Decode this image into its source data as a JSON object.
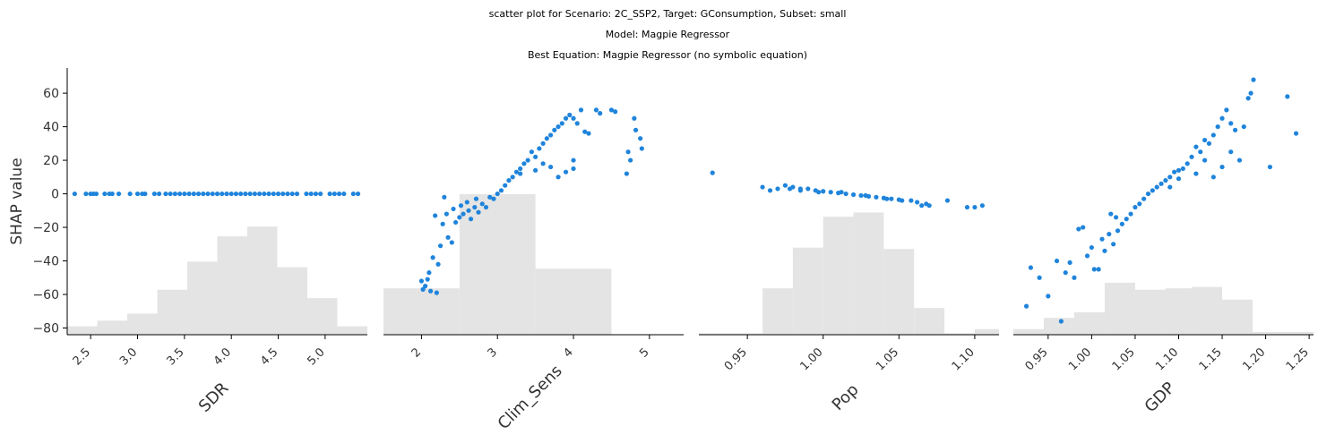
{
  "titles": [
    "scatter plot for Scenario: 2C_SSP2, Target: GConsumption, Subset: small",
    "Model: Magpie Regressor",
    "Best Equation: Magpie Regressor (no symbolic equation)"
  ],
  "colors": {
    "points": "#1f84db",
    "histogram": "#e4e4e4",
    "axis": "#000000"
  },
  "chart_data": [
    {
      "type": "scatter",
      "xlabel": "SDR",
      "ylabel": "SHAP value",
      "xlim": [
        2.25,
        5.45
      ],
      "ylim": [
        -84,
        75
      ],
      "x_ticks": [
        2.5,
        3.0,
        3.5,
        4.0,
        4.5,
        5.0
      ],
      "x_tick_labels": [
        "2.5",
        "3.0",
        "3.5",
        "4.0",
        "4.5",
        "5.0"
      ],
      "y_ticks": [
        -80,
        -60,
        -40,
        -20,
        0,
        20,
        40,
        60
      ],
      "y_tick_labels": [
        "−80",
        "−60",
        "−40",
        "−20",
        "0",
        "20",
        "40",
        "60"
      ],
      "tick_rotation": -45,
      "histogram": [
        {
          "x0": 2.25,
          "x1": 2.57,
          "h": 0.06
        },
        {
          "x0": 2.57,
          "x1": 2.89,
          "h": 0.1
        },
        {
          "x0": 2.89,
          "x1": 3.21,
          "h": 0.15
        },
        {
          "x0": 3.21,
          "x1": 3.53,
          "h": 0.32
        },
        {
          "x0": 3.53,
          "x1": 3.85,
          "h": 0.52
        },
        {
          "x0": 3.85,
          "x1": 4.17,
          "h": 0.7
        },
        {
          "x0": 4.17,
          "x1": 4.49,
          "h": 0.77
        },
        {
          "x0": 4.49,
          "x1": 4.81,
          "h": 0.48
        },
        {
          "x0": 4.81,
          "x1": 5.13,
          "h": 0.26
        },
        {
          "x0": 5.13,
          "x1": 5.45,
          "h": 0.06
        }
      ],
      "points": [
        [
          2.33,
          0
        ],
        [
          2.45,
          0
        ],
        [
          2.5,
          0
        ],
        [
          2.53,
          0
        ],
        [
          2.56,
          0
        ],
        [
          2.65,
          0
        ],
        [
          2.7,
          0
        ],
        [
          2.73,
          0
        ],
        [
          2.8,
          0
        ],
        [
          2.92,
          0
        ],
        [
          3.0,
          0
        ],
        [
          3.05,
          0
        ],
        [
          3.08,
          0
        ],
        [
          3.18,
          0
        ],
        [
          3.23,
          0
        ],
        [
          3.3,
          0
        ],
        [
          3.35,
          0
        ],
        [
          3.4,
          0
        ],
        [
          3.45,
          0
        ],
        [
          3.5,
          0
        ],
        [
          3.55,
          0
        ],
        [
          3.6,
          0
        ],
        [
          3.65,
          0
        ],
        [
          3.7,
          0
        ],
        [
          3.75,
          0
        ],
        [
          3.8,
          0
        ],
        [
          3.85,
          0
        ],
        [
          3.9,
          0
        ],
        [
          3.95,
          0
        ],
        [
          4.0,
          0
        ],
        [
          4.05,
          0
        ],
        [
          4.1,
          0
        ],
        [
          4.15,
          0
        ],
        [
          4.2,
          0
        ],
        [
          4.25,
          0
        ],
        [
          4.3,
          0
        ],
        [
          4.35,
          0
        ],
        [
          4.4,
          0
        ],
        [
          4.45,
          0
        ],
        [
          4.5,
          0
        ],
        [
          4.55,
          0
        ],
        [
          4.6,
          0
        ],
        [
          4.65,
          0
        ],
        [
          4.7,
          0
        ],
        [
          4.8,
          0
        ],
        [
          4.85,
          0
        ],
        [
          4.9,
          0
        ],
        [
          4.95,
          0
        ],
        [
          5.05,
          0
        ],
        [
          5.1,
          0
        ],
        [
          5.15,
          0
        ],
        [
          5.2,
          0
        ],
        [
          5.3,
          0
        ],
        [
          5.35,
          0
        ]
      ]
    },
    {
      "type": "scatter",
      "xlabel": "Clim_Sens",
      "ylabel": "",
      "xlim": [
        1.5,
        5.45
      ],
      "ylim": [
        -84,
        75
      ],
      "x_ticks": [
        2,
        3,
        4,
        5
      ],
      "x_tick_labels": [
        "2",
        "3",
        "4",
        "5"
      ],
      "y_ticks": [],
      "y_tick_labels": [],
      "tick_rotation": -45,
      "histogram": [
        {
          "x0": 1.5,
          "x1": 2.5,
          "h": 0.33
        },
        {
          "x0": 2.5,
          "x1": 3.5,
          "h": 1.0
        },
        {
          "x0": 3.5,
          "x1": 4.5,
          "h": 0.47
        }
      ],
      "points": [
        [
          2.0,
          -52
        ],
        [
          2.02,
          -57
        ],
        [
          2.05,
          -55
        ],
        [
          2.08,
          -51
        ],
        [
          2.1,
          -47
        ],
        [
          2.12,
          -58
        ],
        [
          2.15,
          -38
        ],
        [
          2.18,
          -13
        ],
        [
          2.2,
          -59
        ],
        [
          2.22,
          -42
        ],
        [
          2.25,
          -31
        ],
        [
          2.28,
          -18
        ],
        [
          2.3,
          -2
        ],
        [
          2.33,
          -12
        ],
        [
          2.35,
          -26
        ],
        [
          2.4,
          -29
        ],
        [
          2.42,
          -9
        ],
        [
          2.45,
          -17
        ],
        [
          2.5,
          -14
        ],
        [
          2.52,
          -7
        ],
        [
          2.55,
          -12
        ],
        [
          2.6,
          -5
        ],
        [
          2.62,
          -10
        ],
        [
          2.65,
          -15
        ],
        [
          2.7,
          -8
        ],
        [
          2.72,
          -3
        ],
        [
          2.75,
          -11
        ],
        [
          2.8,
          -6
        ],
        [
          2.85,
          -8
        ],
        [
          2.9,
          -2
        ],
        [
          2.95,
          -3
        ],
        [
          3.0,
          0
        ],
        [
          3.05,
          2
        ],
        [
          3.1,
          5
        ],
        [
          3.15,
          8
        ],
        [
          3.2,
          10
        ],
        [
          3.25,
          13
        ],
        [
          3.3,
          15
        ],
        [
          3.35,
          18
        ],
        [
          3.4,
          20
        ],
        [
          3.45,
          25
        ],
        [
          3.5,
          22
        ],
        [
          3.55,
          27
        ],
        [
          3.6,
          30
        ],
        [
          3.65,
          33
        ],
        [
          3.7,
          35
        ],
        [
          3.75,
          38
        ],
        [
          3.8,
          40
        ],
        [
          3.85,
          42
        ],
        [
          3.9,
          45
        ],
        [
          3.95,
          47
        ],
        [
          4.0,
          45
        ],
        [
          4.05,
          42
        ],
        [
          4.1,
          50
        ],
        [
          4.15,
          37
        ],
        [
          4.2,
          36
        ],
        [
          4.3,
          50
        ],
        [
          4.35,
          48
        ],
        [
          4.5,
          50
        ],
        [
          4.55,
          49
        ],
        [
          4.7,
          12
        ],
        [
          4.72,
          25
        ],
        [
          4.75,
          20
        ],
        [
          4.8,
          45
        ],
        [
          4.82,
          38
        ],
        [
          4.88,
          33
        ],
        [
          4.9,
          27
        ],
        [
          3.3,
          12
        ],
        [
          3.5,
          14
        ],
        [
          3.7,
          16
        ],
        [
          3.9,
          13
        ],
        [
          4.0,
          15
        ],
        [
          4.0,
          20
        ],
        [
          3.8,
          10
        ],
        [
          3.6,
          18
        ]
      ]
    },
    {
      "type": "scatter",
      "xlabel": "Pop",
      "ylabel": "",
      "xlim": [
        0.918,
        1.116
      ],
      "ylim": [
        -84,
        75
      ],
      "x_ticks": [
        0.95,
        1.0,
        1.05,
        1.1
      ],
      "x_tick_labels": [
        "0.95",
        "1.00",
        "1.05",
        "1.10"
      ],
      "y_ticks": [],
      "y_tick_labels": [],
      "tick_rotation": -45,
      "histogram": [
        {
          "x0": 0.918,
          "x1": 0.94,
          "h": 0.01
        },
        {
          "x0": 0.94,
          "x1": 0.96,
          "h": 0.01
        },
        {
          "x0": 0.96,
          "x1": 0.98,
          "h": 0.33
        },
        {
          "x0": 0.98,
          "x1": 1.0,
          "h": 0.62
        },
        {
          "x0": 1.0,
          "x1": 1.02,
          "h": 0.84
        },
        {
          "x0": 1.02,
          "x1": 1.04,
          "h": 0.87
        },
        {
          "x0": 1.04,
          "x1": 1.06,
          "h": 0.61
        },
        {
          "x0": 1.06,
          "x1": 1.08,
          "h": 0.19
        },
        {
          "x0": 1.08,
          "x1": 1.1,
          "h": 0.01
        },
        {
          "x0": 1.1,
          "x1": 1.116,
          "h": 0.04
        }
      ],
      "points": [
        [
          0.927,
          12.5
        ],
        [
          0.96,
          4
        ],
        [
          0.965,
          2
        ],
        [
          0.97,
          3
        ],
        [
          0.975,
          5
        ],
        [
          0.978,
          3
        ],
        [
          0.98,
          4
        ],
        [
          0.985,
          2
        ],
        [
          0.99,
          3
        ],
        [
          0.995,
          2
        ],
        [
          1.0,
          1.5
        ],
        [
          1.005,
          1
        ],
        [
          1.01,
          0.5
        ],
        [
          1.015,
          0
        ],
        [
          1.02,
          -0.5
        ],
        [
          1.025,
          -1
        ],
        [
          1.03,
          -1.5
        ],
        [
          1.035,
          -2
        ],
        [
          1.04,
          -2.5
        ],
        [
          1.045,
          -3
        ],
        [
          1.05,
          -3.5
        ],
        [
          1.058,
          -4
        ],
        [
          1.062,
          -5
        ],
        [
          1.065,
          -7
        ],
        [
          1.068,
          -6
        ],
        [
          1.07,
          -7
        ],
        [
          1.082,
          -4
        ],
        [
          1.095,
          -8
        ],
        [
          1.1,
          -8
        ],
        [
          1.105,
          -7
        ],
        [
          0.985,
          3
        ],
        [
          0.997,
          1
        ],
        [
          1.012,
          1
        ],
        [
          1.028,
          -1
        ],
        [
          1.042,
          -3
        ],
        [
          1.052,
          -4
        ]
      ]
    },
    {
      "type": "scatter",
      "xlabel": "GDP",
      "ylabel": "",
      "xlim": [
        0.91,
        1.255
      ],
      "ylim": [
        -84,
        75
      ],
      "x_ticks": [
        0.95,
        1.0,
        1.05,
        1.1,
        1.15,
        1.2,
        1.25
      ],
      "x_tick_labels": [
        "0.95",
        "1.00",
        "1.05",
        "1.10",
        "1.15",
        "1.20",
        "1.25"
      ],
      "y_ticks": [],
      "y_tick_labels": [],
      "tick_rotation": -45,
      "histogram": [
        {
          "x0": 0.91,
          "x1": 0.945,
          "h": 0.04
        },
        {
          "x0": 0.945,
          "x1": 0.98,
          "h": 0.12
        },
        {
          "x0": 0.98,
          "x1": 1.015,
          "h": 0.16
        },
        {
          "x0": 1.015,
          "x1": 1.05,
          "h": 0.37
        },
        {
          "x0": 1.05,
          "x1": 1.085,
          "h": 0.32
        },
        {
          "x0": 1.085,
          "x1": 1.115,
          "h": 0.33
        },
        {
          "x0": 1.115,
          "x1": 1.15,
          "h": 0.34
        },
        {
          "x0": 1.15,
          "x1": 1.185,
          "h": 0.25
        },
        {
          "x0": 1.185,
          "x1": 1.255,
          "h": 0.02
        }
      ],
      "points": [
        [
          0.925,
          -67
        ],
        [
          0.93,
          -44
        ],
        [
          0.94,
          -50
        ],
        [
          0.95,
          -61
        ],
        [
          0.96,
          -40
        ],
        [
          0.965,
          -76
        ],
        [
          0.97,
          -47
        ],
        [
          0.975,
          -41
        ],
        [
          0.98,
          -50
        ],
        [
          0.985,
          -21
        ],
        [
          0.99,
          -20
        ],
        [
          0.995,
          -37
        ],
        [
          1.0,
          -32
        ],
        [
          1.003,
          -45
        ],
        [
          1.008,
          -45
        ],
        [
          1.012,
          -27
        ],
        [
          1.015,
          -34
        ],
        [
          1.02,
          -24
        ],
        [
          1.022,
          -12
        ],
        [
          1.025,
          -30
        ],
        [
          1.028,
          -14
        ],
        [
          1.03,
          -22
        ],
        [
          1.035,
          -18
        ],
        [
          1.04,
          -15
        ],
        [
          1.045,
          -12
        ],
        [
          1.05,
          -8
        ],
        [
          1.055,
          -6
        ],
        [
          1.06,
          -3
        ],
        [
          1.065,
          0
        ],
        [
          1.07,
          2
        ],
        [
          1.075,
          4
        ],
        [
          1.08,
          6
        ],
        [
          1.085,
          8
        ],
        [
          1.09,
          10
        ],
        [
          1.095,
          13
        ],
        [
          1.1,
          14
        ],
        [
          1.105,
          15
        ],
        [
          1.11,
          18
        ],
        [
          1.115,
          22
        ],
        [
          1.12,
          28
        ],
        [
          1.125,
          25
        ],
        [
          1.13,
          32
        ],
        [
          1.135,
          30
        ],
        [
          1.14,
          35
        ],
        [
          1.145,
          40
        ],
        [
          1.15,
          45
        ],
        [
          1.155,
          50
        ],
        [
          1.16,
          42
        ],
        [
          1.165,
          38
        ],
        [
          1.17,
          20
        ],
        [
          1.175,
          40
        ],
        [
          1.18,
          57
        ],
        [
          1.183,
          60
        ],
        [
          1.186,
          68
        ],
        [
          1.205,
          16
        ],
        [
          1.225,
          58
        ],
        [
          1.235,
          36
        ],
        [
          1.12,
          12
        ],
        [
          1.14,
          10
        ],
        [
          1.13,
          20
        ],
        [
          1.15,
          16
        ],
        [
          1.16,
          25
        ],
        [
          1.1,
          9
        ],
        [
          1.09,
          4
        ]
      ]
    }
  ]
}
